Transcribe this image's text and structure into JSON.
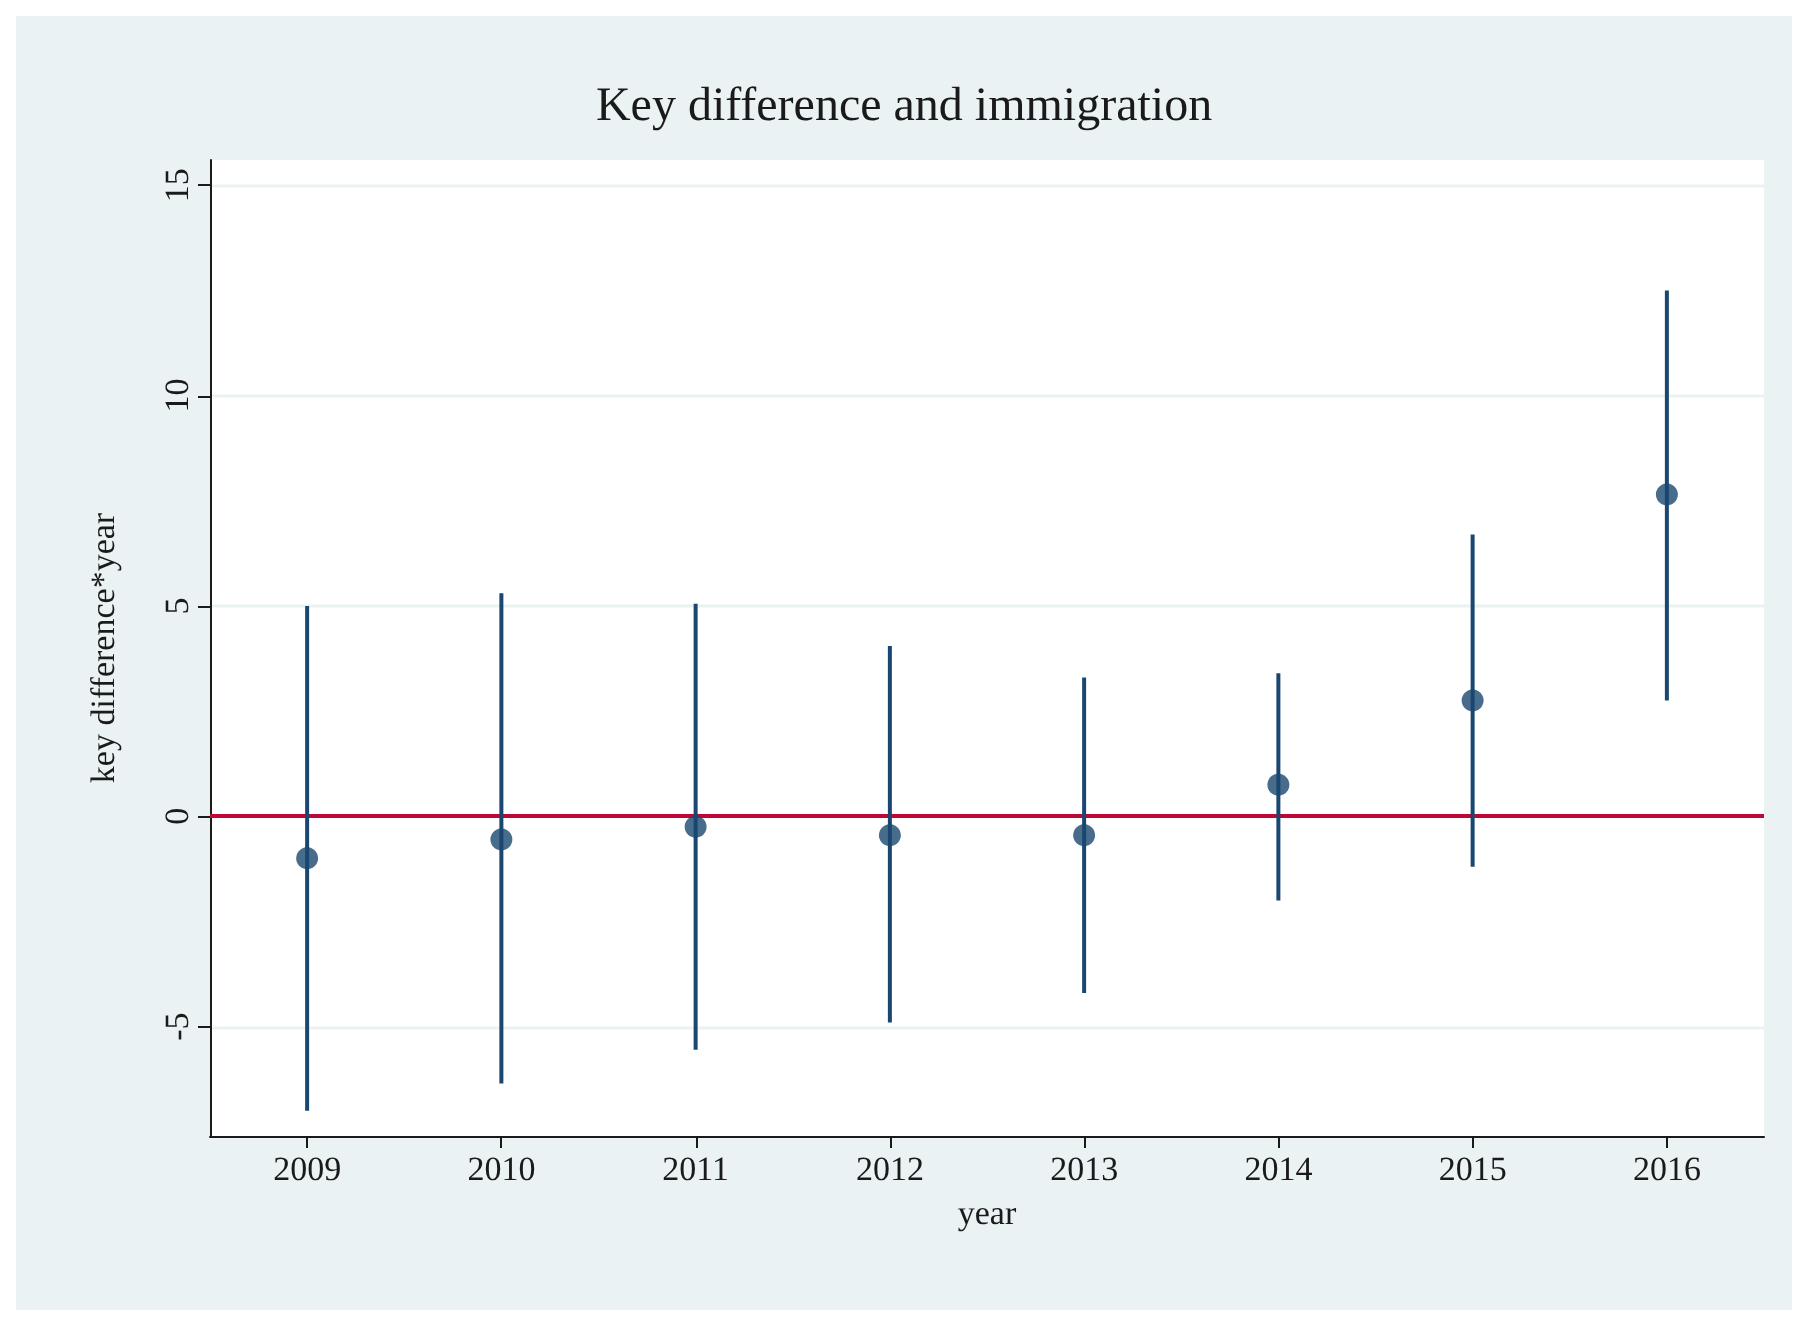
{
  "chart_data": {
    "type": "scatter",
    "title": "Key difference and immigration",
    "xlabel": "year",
    "ylabel": "key difference*year",
    "x": [
      2009,
      2010,
      2011,
      2012,
      2013,
      2014,
      2015,
      2016
    ],
    "values": [
      -1.0,
      -0.55,
      -0.25,
      -0.45,
      -0.45,
      0.75,
      2.75,
      7.65
    ],
    "errors": [
      [
        -7.0,
        5.0
      ],
      [
        -6.35,
        5.3
      ],
      [
        -5.55,
        5.05
      ],
      [
        -4.9,
        4.05
      ],
      [
        -4.2,
        3.3
      ],
      [
        -2.0,
        3.4
      ],
      [
        -1.2,
        6.7
      ],
      [
        2.75,
        12.5
      ]
    ],
    "color": "#1a476f",
    "marker": "circle",
    "xlim": [
      2008.5,
      2016.5
    ],
    "xticks": [
      2009,
      2010,
      2011,
      2012,
      2013,
      2014,
      2015,
      2016
    ],
    "ylim": [
      -7.6,
      15.6
    ],
    "yticks": [
      -5,
      0,
      5,
      10,
      15
    ],
    "grid": "y",
    "ref_lines": [
      {
        "axis": "y",
        "value": 0,
        "color": "#c10534"
      }
    ]
  }
}
